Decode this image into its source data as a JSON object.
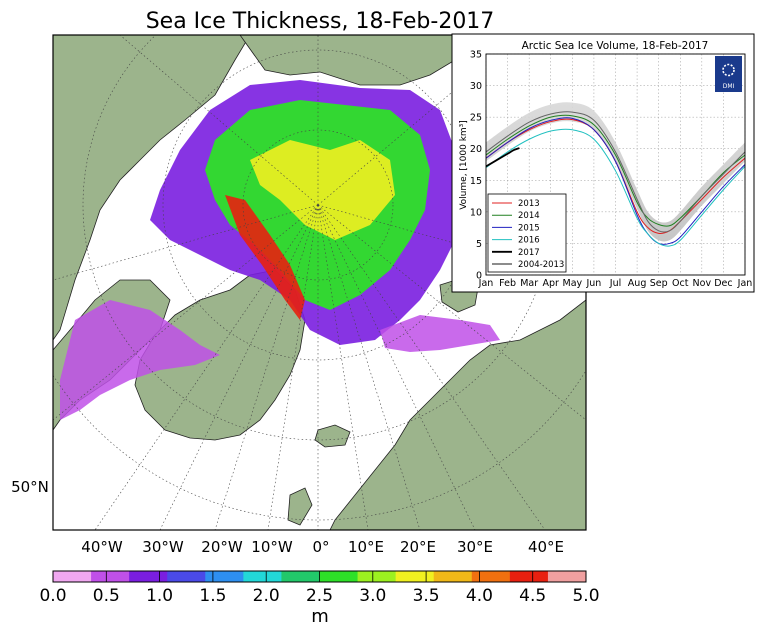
{
  "map": {
    "title": "Sea Ice Thickness, 18-Feb-2017",
    "lon_labels": [
      "40°W",
      "30°W",
      "20°W",
      "10°W",
      "0°",
      "10°E",
      "20°E",
      "30°E",
      "40°E"
    ],
    "lat_label": "50°N",
    "colorbar": {
      "ticks": [
        "0.0",
        "0.5",
        "1.0",
        "1.5",
        "2.0",
        "2.5",
        "3.0",
        "3.5",
        "4.0",
        "4.5",
        "5.0"
      ],
      "unit": "m",
      "range": [
        0,
        5
      ],
      "colors": [
        "#f0a8f0",
        "#c050e8",
        "#7a1ee0",
        "#4a4ae8",
        "#2e8ff0",
        "#22d8d8",
        "#22c86a",
        "#2ee028",
        "#9cf020",
        "#f0f020",
        "#f0b818",
        "#f07010",
        "#e82010",
        "#f0a0a0"
      ]
    },
    "colors": {
      "land": "#9cb48c",
      "ocean": "#ffffff"
    }
  },
  "chart_data": {
    "type": "line",
    "title": "Arctic Sea Ice Volume, 18-Feb-2017",
    "xlabel": "",
    "ylabel": "Volume, [1000 km³]",
    "ylim": [
      0,
      35
    ],
    "yticks": [
      "0",
      "5",
      "10",
      "15",
      "20",
      "25",
      "30",
      "35"
    ],
    "categories": [
      "Jan",
      "Feb",
      "Mar",
      "Apr",
      "May",
      "Jun",
      "Jul",
      "Aug",
      "Sep",
      "Oct",
      "Nov",
      "Dec",
      "Jan"
    ],
    "grid": true,
    "legend_position": "bottom-left",
    "logo_text": "DMI",
    "series": [
      {
        "name": "2013",
        "color": "#e02020",
        "x": [
          0,
          1,
          2,
          3,
          4,
          5,
          6,
          7,
          7.5,
          8,
          8.5,
          9,
          10,
          11,
          12
        ],
        "values": [
          18.5,
          21.0,
          23.0,
          24.3,
          24.6,
          23.0,
          18.0,
          10.0,
          7.5,
          6.6,
          7.0,
          8.5,
          12.0,
          15.5,
          18.5
        ]
      },
      {
        "name": "2014",
        "color": "#208020",
        "x": [
          0,
          1,
          2,
          3,
          4,
          5,
          6,
          7,
          7.5,
          8,
          8.5,
          9,
          10,
          11,
          12
        ],
        "values": [
          19.0,
          21.5,
          23.6,
          25.0,
          25.2,
          23.8,
          19.0,
          11.5,
          9.0,
          8.0,
          7.8,
          9.0,
          12.5,
          16.2,
          19.0
        ]
      },
      {
        "name": "2015",
        "color": "#2020c0",
        "x": [
          0,
          1,
          2,
          3,
          4,
          5,
          6,
          7,
          7.5,
          8,
          8.5,
          9,
          10,
          11,
          12
        ],
        "values": [
          18.5,
          21.0,
          23.2,
          24.5,
          24.8,
          23.0,
          18.0,
          9.5,
          6.5,
          5.0,
          5.0,
          6.0,
          10.0,
          14.0,
          17.5
        ]
      },
      {
        "name": "2016",
        "color": "#20c0c0",
        "x": [
          0,
          1,
          2,
          3,
          4,
          5,
          6,
          7,
          7.5,
          8,
          8.5,
          9,
          10,
          11,
          12
        ],
        "values": [
          17.0,
          19.5,
          21.5,
          22.8,
          23.0,
          21.5,
          16.5,
          9.0,
          6.5,
          5.0,
          4.6,
          5.5,
          9.5,
          13.5,
          17.2
        ]
      },
      {
        "name": "2017",
        "color": "#000000",
        "x": [
          0,
          0.5,
          1,
          1.3,
          1.55
        ],
        "values": [
          17.2,
          18.2,
          19.2,
          19.8,
          20.1
        ]
      },
      {
        "name": "2004-2013",
        "color": "#666666",
        "x": [
          0,
          1,
          2,
          3,
          4,
          5,
          6,
          7,
          7.5,
          8,
          8.5,
          9,
          10,
          11,
          12
        ],
        "values": [
          19.5,
          22.0,
          24.2,
          25.5,
          25.8,
          24.5,
          19.5,
          12.0,
          8.5,
          7.0,
          7.0,
          8.5,
          12.5,
          16.0,
          19.5
        ],
        "band": 1.5
      }
    ]
  }
}
